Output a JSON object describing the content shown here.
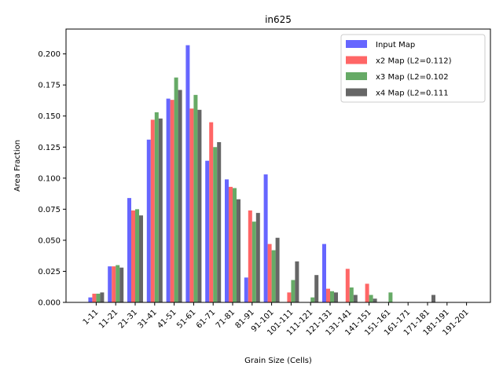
{
  "chart_data": {
    "type": "bar",
    "title": "in625",
    "xlabel": "Grain Size (Cells)",
    "ylabel": "Area Fraction",
    "ylim": [
      0,
      0.22
    ],
    "yticks": [
      "0.000",
      "0.025",
      "0.050",
      "0.075",
      "0.100",
      "0.125",
      "0.150",
      "0.175",
      "0.200"
    ],
    "grid": false,
    "legend_position": "top-right",
    "categories": [
      "1-11",
      "11-21",
      "21-31",
      "31-41",
      "41-51",
      "51-61",
      "61-71",
      "71-81",
      "81-91",
      "91-101",
      "101-111",
      "111-121",
      "121-131",
      "131-141",
      "141-151",
      "151-161",
      "161-171",
      "171-181",
      "181-191",
      "191-201"
    ],
    "series": [
      {
        "name": "Input Map",
        "color": "#6666ff",
        "values": [
          0.004,
          0.029,
          0.084,
          0.131,
          0.164,
          0.207,
          0.114,
          0.099,
          0.02,
          0.103,
          0.0,
          0.0,
          0.047,
          0.0,
          0.0,
          0.0,
          0.0,
          0.0,
          0.0,
          0.0
        ]
      },
      {
        "name": "x2 Map (L2=0.112)",
        "color": "#ff6666",
        "values": [
          0.007,
          0.029,
          0.074,
          0.147,
          0.163,
          0.156,
          0.145,
          0.093,
          0.074,
          0.047,
          0.008,
          0.0,
          0.011,
          0.027,
          0.015,
          0.0,
          0.0,
          0.0,
          0.0,
          0.0
        ]
      },
      {
        "name": "x3 Map (L2=0.102",
        "color": "#66aa66",
        "values": [
          0.007,
          0.03,
          0.075,
          0.153,
          0.181,
          0.167,
          0.125,
          0.092,
          0.065,
          0.042,
          0.018,
          0.004,
          0.009,
          0.012,
          0.006,
          0.008,
          0.0,
          0.0,
          0.0,
          0.0
        ]
      },
      {
        "name": "x4 Map (L2=0.111",
        "color": "#666666",
        "values": [
          0.008,
          0.028,
          0.07,
          0.148,
          0.171,
          0.155,
          0.129,
          0.083,
          0.072,
          0.052,
          0.033,
          0.022,
          0.008,
          0.006,
          0.003,
          0.0,
          0.0,
          0.006,
          0.0,
          0.0
        ]
      }
    ]
  }
}
